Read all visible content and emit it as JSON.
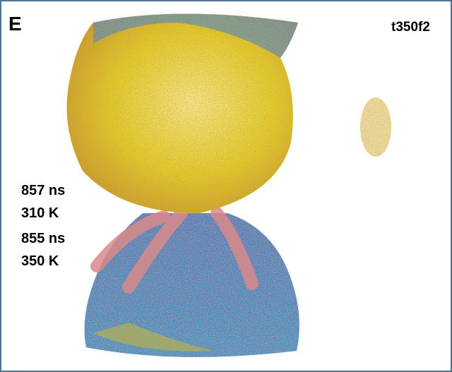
{
  "panel": {
    "label": "E",
    "id": "t350f2"
  },
  "annotations": {
    "top": {
      "time": "857 ns",
      "temperature": "310 K"
    },
    "bottom": {
      "time": "855 ns",
      "temperature": "350 K"
    }
  }
}
